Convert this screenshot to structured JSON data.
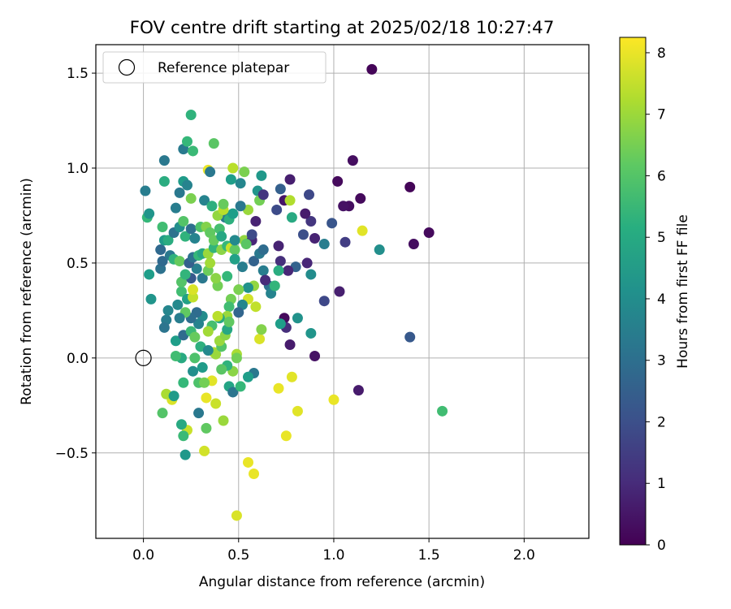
{
  "chart_data": {
    "type": "scatter",
    "title": "FOV centre drift starting at 2025/02/18 10:27:47",
    "xlabel": "Angular distance from reference (arcmin)",
    "ylabel": "Rotation from reference (arcmin)",
    "xlim": [
      -0.25,
      2.34
    ],
    "ylim": [
      -0.95,
      1.65
    ],
    "xticks": [
      0.0,
      0.5,
      1.0,
      1.5,
      2.0
    ],
    "xtick_labels": [
      "0.0",
      "0.5",
      "1.0",
      "1.5",
      "2.0"
    ],
    "yticks": [
      -0.5,
      0.0,
      0.5,
      1.0,
      1.5
    ],
    "ytick_labels": [
      "−0.5",
      "0.0",
      "0.5",
      "1.0",
      "1.5"
    ],
    "grid": true,
    "legend": {
      "label": "Reference platepar",
      "placement": "top-left"
    },
    "reference_point": {
      "x": 0.0,
      "y": 0.0
    },
    "colorbar": {
      "label": "Hours from first FF file",
      "range": [
        0,
        8.25
      ],
      "ticks": [
        0,
        1,
        2,
        3,
        4,
        5,
        6,
        7,
        8
      ],
      "tick_labels": [
        "0",
        "1",
        "2",
        "3",
        "4",
        "5",
        "6",
        "7",
        "8"
      ],
      "colormap": "viridis"
    },
    "points": [
      [
        1.2,
        1.52,
        0.1
      ],
      [
        1.1,
        1.04,
        0.3
      ],
      [
        1.02,
        0.93,
        0.2
      ],
      [
        1.4,
        0.9,
        0.1
      ],
      [
        1.14,
        0.84,
        0.2
      ],
      [
        1.08,
        0.8,
        0.3
      ],
      [
        1.05,
        0.8,
        0.4
      ],
      [
        1.5,
        0.66,
        0.2
      ],
      [
        1.42,
        0.6,
        0.3
      ],
      [
        1.06,
        0.61,
        1.5
      ],
      [
        0.99,
        0.71,
        2.2
      ],
      [
        0.88,
        0.72,
        1.3
      ],
      [
        0.85,
        0.76,
        0.6
      ],
      [
        0.9,
        0.63,
        0.8
      ],
      [
        0.86,
        0.5,
        0.9
      ],
      [
        0.84,
        0.65,
        2.0
      ],
      [
        0.8,
        0.48,
        2.6
      ],
      [
        0.87,
        0.86,
        1.8
      ],
      [
        0.77,
        0.94,
        0.7
      ],
      [
        0.74,
        0.83,
        0.5
      ],
      [
        0.72,
        0.89,
        2.5
      ],
      [
        0.7,
        0.78,
        1.9
      ],
      [
        0.78,
        0.74,
        5.0
      ],
      [
        0.77,
        0.83,
        7.3
      ],
      [
        0.71,
        0.59,
        0.8
      ],
      [
        0.72,
        0.51,
        1.1
      ],
      [
        0.76,
        0.46,
        0.9
      ],
      [
        0.88,
        0.44,
        4.0
      ],
      [
        0.95,
        0.6,
        3.5
      ],
      [
        0.95,
        0.3,
        1.8
      ],
      [
        1.03,
        0.35,
        0.7
      ],
      [
        0.9,
        0.01,
        0.4
      ],
      [
        0.88,
        0.13,
        4.3
      ],
      [
        0.81,
        0.21,
        4.2
      ],
      [
        0.74,
        0.21,
        0.2
      ],
      [
        0.75,
        0.16,
        1.1
      ],
      [
        0.77,
        0.07,
        0.6
      ],
      [
        0.72,
        0.18,
        4.6
      ],
      [
        1.13,
        -0.17,
        0.6
      ],
      [
        1.4,
        0.11,
        2.3
      ],
      [
        1.24,
        0.57,
        4.1
      ],
      [
        1.57,
        -0.28,
        5.7
      ],
      [
        1.15,
        0.67,
        7.9
      ],
      [
        1.0,
        -0.22,
        8.0
      ],
      [
        0.81,
        -0.28,
        7.9
      ],
      [
        0.78,
        -0.1,
        7.9
      ],
      [
        0.71,
        -0.16,
        8.0
      ],
      [
        0.75,
        -0.41,
        8.0
      ],
      [
        0.55,
        -0.55,
        8.0
      ],
      [
        0.58,
        -0.61,
        8.0
      ],
      [
        0.49,
        -0.83,
        7.8
      ],
      [
        0.32,
        -0.49,
        7.7
      ],
      [
        0.38,
        -0.24,
        7.6
      ],
      [
        0.33,
        -0.21,
        8.0
      ],
      [
        0.36,
        -0.12,
        7.9
      ],
      [
        0.23,
        -0.38,
        7.6
      ],
      [
        0.15,
        -0.22,
        7.8
      ],
      [
        0.12,
        -0.19,
        7.2
      ],
      [
        0.1,
        -0.29,
        6.0
      ],
      [
        0.2,
        -0.35,
        5.0
      ],
      [
        0.21,
        -0.41,
        5.6
      ],
      [
        0.22,
        -0.51,
        4.4
      ],
      [
        0.29,
        -0.29,
        3.3
      ],
      [
        0.33,
        -0.37,
        6.2
      ],
      [
        0.42,
        -0.33,
        7.0
      ],
      [
        0.16,
        -0.2,
        4.5
      ],
      [
        0.21,
        -0.13,
        5.5
      ],
      [
        0.29,
        -0.13,
        5.9
      ],
      [
        0.32,
        -0.13,
        6.5
      ],
      [
        0.45,
        -0.15,
        4.8
      ],
      [
        0.47,
        -0.18,
        3.2
      ],
      [
        0.51,
        -0.15,
        5.5
      ],
      [
        0.58,
        -0.08,
        3.3
      ],
      [
        0.55,
        -0.1,
        4.6
      ],
      [
        0.47,
        -0.07,
        6.8
      ],
      [
        0.44,
        -0.04,
        5.3
      ],
      [
        0.41,
        -0.06,
        6.1
      ],
      [
        0.31,
        -0.05,
        4.5
      ],
      [
        0.26,
        -0.07,
        4.1
      ],
      [
        0.27,
        0.0,
        5.9
      ],
      [
        0.2,
        0.0,
        5.0
      ],
      [
        0.17,
        0.01,
        5.7
      ],
      [
        0.37,
        0.03,
        7.3
      ],
      [
        0.38,
        0.02,
        7.0
      ],
      [
        0.41,
        0.06,
        6.0
      ],
      [
        0.49,
        0.02,
        7.2
      ],
      [
        0.49,
        0.0,
        6.5
      ],
      [
        0.61,
        0.1,
        7.8
      ],
      [
        0.62,
        0.15,
        6.7
      ],
      [
        0.59,
        0.27,
        7.5
      ],
      [
        0.58,
        0.38,
        6.9
      ],
      [
        0.55,
        0.37,
        4.2
      ],
      [
        0.55,
        0.31,
        7.7
      ],
      [
        0.52,
        0.28,
        3.8
      ],
      [
        0.5,
        0.36,
        6.6
      ],
      [
        0.5,
        0.24,
        2.7
      ],
      [
        0.46,
        0.31,
        6.5
      ],
      [
        0.45,
        0.27,
        5.7
      ],
      [
        0.44,
        0.22,
        7.0
      ],
      [
        0.4,
        0.21,
        5.0
      ],
      [
        0.39,
        0.22,
        7.4
      ],
      [
        0.36,
        0.17,
        5.8
      ],
      [
        0.34,
        0.14,
        7.1
      ],
      [
        0.31,
        0.22,
        4.0
      ],
      [
        0.29,
        0.18,
        3.7
      ],
      [
        0.28,
        0.24,
        2.9
      ],
      [
        0.25,
        0.21,
        3.0
      ],
      [
        0.22,
        0.24,
        6.2
      ],
      [
        0.19,
        0.21,
        3.5
      ],
      [
        0.17,
        0.09,
        4.6
      ],
      [
        0.21,
        0.12,
        2.9
      ],
      [
        0.25,
        0.14,
        5.6
      ],
      [
        0.27,
        0.11,
        6.3
      ],
      [
        0.3,
        0.06,
        5.2
      ],
      [
        0.34,
        0.04,
        3.9
      ],
      [
        0.4,
        0.09,
        7.0
      ],
      [
        0.43,
        0.12,
        6.8
      ],
      [
        0.44,
        0.15,
        4.9
      ],
      [
        0.45,
        0.19,
        6.2
      ],
      [
        0.12,
        0.2,
        3.5
      ],
      [
        0.11,
        0.16,
        3.2
      ],
      [
        0.13,
        0.25,
        3.8
      ],
      [
        0.18,
        0.28,
        3.9
      ],
      [
        0.2,
        0.35,
        5.7
      ],
      [
        0.23,
        0.31,
        4.7
      ],
      [
        0.26,
        0.32,
        7.5
      ],
      [
        0.26,
        0.36,
        7.8
      ],
      [
        0.31,
        0.42,
        3.3
      ],
      [
        0.34,
        0.46,
        6.4
      ],
      [
        0.39,
        0.38,
        6.5
      ],
      [
        0.38,
        0.42,
        6.8
      ],
      [
        0.35,
        0.5,
        7.1
      ],
      [
        0.28,
        0.47,
        3.6
      ],
      [
        0.25,
        0.42,
        2.3
      ],
      [
        0.2,
        0.4,
        6.0
      ],
      [
        0.22,
        0.44,
        5.4
      ],
      [
        0.04,
        0.31,
        4.3
      ],
      [
        0.03,
        0.44,
        4.6
      ],
      [
        0.09,
        0.47,
        3.1
      ],
      [
        0.1,
        0.51,
        2.8
      ],
      [
        0.14,
        0.54,
        3.3
      ],
      [
        0.16,
        0.52,
        5.3
      ],
      [
        0.19,
        0.51,
        6.3
      ],
      [
        0.24,
        0.5,
        2.5
      ],
      [
        0.26,
        0.53,
        3.1
      ],
      [
        0.29,
        0.54,
        5.5
      ],
      [
        0.31,
        0.55,
        4.9
      ],
      [
        0.34,
        0.55,
        7.0
      ],
      [
        0.37,
        0.58,
        5.4
      ],
      [
        0.41,
        0.57,
        6.8
      ],
      [
        0.44,
        0.59,
        5.5
      ],
      [
        0.46,
        0.58,
        7.6
      ],
      [
        0.48,
        0.57,
        6.2
      ],
      [
        0.53,
        0.62,
        6.9
      ],
      [
        0.57,
        0.62,
        0.9
      ],
      [
        0.58,
        0.51,
        2.6
      ],
      [
        0.63,
        0.46,
        3.5
      ],
      [
        0.61,
        0.55,
        3.3
      ],
      [
        0.63,
        0.57,
        2.9
      ],
      [
        0.66,
        0.38,
        3.1
      ],
      [
        0.67,
        0.34,
        3.7
      ],
      [
        0.64,
        0.41,
        1.0
      ],
      [
        0.69,
        0.38,
        5.4
      ],
      [
        0.71,
        0.46,
        5.1
      ],
      [
        0.09,
        0.57,
        2.8
      ],
      [
        0.11,
        0.62,
        4.5
      ],
      [
        0.13,
        0.62,
        5.1
      ],
      [
        0.16,
        0.66,
        3.1
      ],
      [
        0.19,
        0.69,
        4.1
      ],
      [
        0.21,
        0.72,
        6.0
      ],
      [
        0.22,
        0.64,
        5.3
      ],
      [
        0.25,
        0.68,
        3.0
      ],
      [
        0.27,
        0.63,
        3.7
      ],
      [
        0.3,
        0.69,
        5.9
      ],
      [
        0.33,
        0.69,
        6.7
      ],
      [
        0.35,
        0.66,
        6.2
      ],
      [
        0.37,
        0.62,
        6.3
      ],
      [
        0.4,
        0.68,
        5.8
      ],
      [
        0.41,
        0.64,
        4.9
      ],
      [
        0.43,
        0.74,
        3.3
      ],
      [
        0.45,
        0.73,
        5.2
      ],
      [
        0.47,
        0.76,
        4.6
      ],
      [
        0.48,
        0.62,
        3.9
      ],
      [
        0.54,
        0.6,
        6.1
      ],
      [
        0.57,
        0.65,
        1.9
      ],
      [
        0.59,
        0.72,
        0.8
      ],
      [
        0.1,
        0.69,
        5.7
      ],
      [
        0.02,
        0.74,
        5.5
      ],
      [
        0.03,
        0.76,
        4.3
      ],
      [
        0.11,
        0.93,
        5.1
      ],
      [
        0.11,
        1.04,
        3.3
      ],
      [
        0.17,
        0.79,
        3.5
      ],
      [
        0.19,
        0.87,
        3.3
      ],
      [
        0.21,
        1.1,
        3.4
      ],
      [
        0.21,
        0.93,
        4.5
      ],
      [
        0.23,
        0.91,
        3.7
      ],
      [
        0.26,
        1.09,
        5.6
      ],
      [
        0.25,
        0.84,
        6.6
      ],
      [
        0.25,
        1.28,
        5.3
      ],
      [
        0.23,
        1.14,
        5.5
      ],
      [
        0.32,
        0.83,
        3.7
      ],
      [
        0.34,
        0.99,
        8.0
      ],
      [
        0.35,
        0.98,
        3.3
      ],
      [
        0.37,
        1.13,
        6.1
      ],
      [
        0.36,
        0.8,
        5.2
      ],
      [
        0.39,
        0.75,
        6.9
      ],
      [
        0.42,
        0.78,
        7.4
      ],
      [
        0.42,
        0.81,
        6.3
      ],
      [
        0.46,
        0.94,
        4.6
      ],
      [
        0.47,
        1.0,
        7.4
      ],
      [
        0.51,
        0.92,
        3.8
      ],
      [
        0.53,
        0.98,
        6.6
      ],
      [
        0.55,
        0.78,
        7.0
      ],
      [
        0.51,
        0.8,
        3.3
      ],
      [
        0.6,
        0.88,
        4.3
      ],
      [
        0.62,
        0.96,
        4.4
      ],
      [
        0.61,
        0.83,
        6.5
      ],
      [
        0.63,
        0.86,
        1.3
      ],
      [
        0.01,
        0.88,
        3.5
      ],
      [
        0.44,
        0.43,
        5.5
      ],
      [
        0.48,
        0.52,
        4.7
      ],
      [
        0.52,
        0.48,
        3.5
      ]
    ]
  }
}
